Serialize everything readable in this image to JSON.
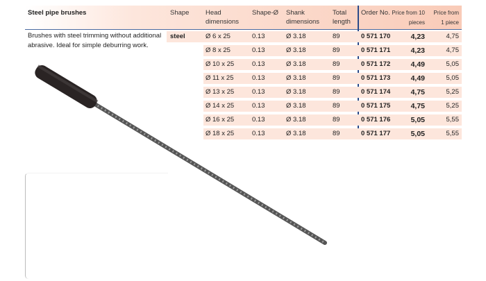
{
  "title": "Steel pipe brushes",
  "description": "Brushes with steel trimming without additional abrasive. Ideal for simple deburring work.",
  "headers": {
    "shape": "Shape",
    "head": "Head dimensions",
    "shape_dia": "Shape-Ø",
    "shank": "Shank dimensions",
    "total": "Total length",
    "order": "Order No.",
    "price10": "Price from 10 pieces",
    "price1": "Price from 1 piece"
  },
  "shape_value": "steel",
  "rows": [
    {
      "head": "Ø 6 x 25",
      "shape_dia": "0.13",
      "shank": "Ø 3.18",
      "total": "89",
      "order": "0 571 170",
      "price10": "4,23",
      "price1": "4,75"
    },
    {
      "head": "Ø 8 x 25",
      "shape_dia": "0.13",
      "shank": "Ø 3.18",
      "total": "89",
      "order": "0 571 171",
      "price10": "4,23",
      "price1": "4,75"
    },
    {
      "head": "Ø 10 x 25",
      "shape_dia": "0.13",
      "shank": "Ø 3.18",
      "total": "89",
      "order": "0 571 172",
      "price10": "4,49",
      "price1": "5,05"
    },
    {
      "head": "Ø 11 x 25",
      "shape_dia": "0.13",
      "shank": "Ø 3.18",
      "total": "89",
      "order": "0 571 173",
      "price10": "4,49",
      "price1": "5,05"
    },
    {
      "head": "Ø 13 x 25",
      "shape_dia": "0.13",
      "shank": "Ø 3.18",
      "total": "89",
      "order": "0 571 174",
      "price10": "4,75",
      "price1": "5,25"
    },
    {
      "head": "Ø 14 x 25",
      "shape_dia": "0.13",
      "shank": "Ø 3.18",
      "total": "89",
      "order": "0 571 175",
      "price10": "4,75",
      "price1": "5,25"
    },
    {
      "head": "Ø 16 x 25",
      "shape_dia": "0.13",
      "shank": "Ø 3.18",
      "total": "89",
      "order": "0 571 176",
      "price10": "5,05",
      "price1": "5,55"
    },
    {
      "head": "Ø 18 x 25",
      "shape_dia": "0.13",
      "shank": "Ø 3.18",
      "total": "89",
      "order": "0 571 177",
      "price10": "5,05",
      "price1": "5,55"
    }
  ]
}
